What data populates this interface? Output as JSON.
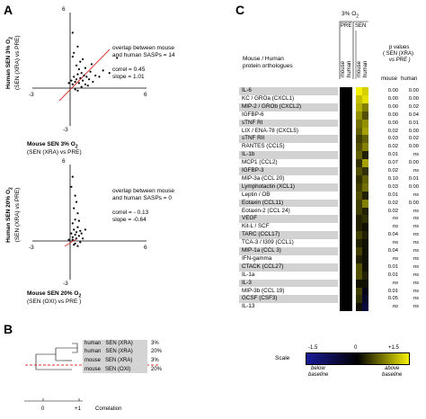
{
  "panel_a": {
    "letter": "A",
    "top": {
      "y_tick_top": "6",
      "x_tick_left": "-3",
      "x_tick_right": "6",
      "y_tick_bottom": "-3",
      "ylabel_line1": "Human SEN  3% O",
      "ylabel_line2": "(SEN (XRA) vs PRE)",
      "xlabel_line1": "Mouse SEN  3% O",
      "xlabel_line2": "(SEN (XRA) vs PRE)",
      "note_line1": "overlap between mouse",
      "note_line2": "and human SASPs = 14",
      "correl": "correl =  0.45",
      "slope": "slope = 1.01",
      "points": [
        [
          0.1,
          0.6
        ],
        [
          0.2,
          0.3
        ],
        [
          0.3,
          0.9
        ],
        [
          0.4,
          0.5
        ],
        [
          0.5,
          0.7
        ],
        [
          0.6,
          1.1
        ],
        [
          0.7,
          0.4
        ],
        [
          0.8,
          0.8
        ],
        [
          0.9,
          1.2
        ],
        [
          1.0,
          0.6
        ],
        [
          1.1,
          1.0
        ],
        [
          1.2,
          0.3
        ],
        [
          1.3,
          0.9
        ],
        [
          1.5,
          0.7
        ],
        [
          1.6,
          1.3
        ],
        [
          1.8,
          0.5
        ],
        [
          2.0,
          1.0
        ],
        [
          2.3,
          0.9
        ],
        [
          0.2,
          2.5
        ],
        [
          0.3,
          2.8
        ],
        [
          0.6,
          3.3
        ],
        [
          0.5,
          1.8
        ],
        [
          0.8,
          2.1
        ],
        [
          1.2,
          1.6
        ],
        [
          1.4,
          0.2
        ],
        [
          0.4,
          -0.1
        ],
        [
          0.9,
          0.1
        ],
        [
          0.6,
          -0.2
        ],
        [
          2.6,
          1.4
        ],
        [
          3.1,
          1.2
        ],
        [
          0.2,
          4.4
        ],
        [
          3.7,
          2.4
        ],
        [
          -0.1,
          0.4
        ],
        [
          0.7,
          1.5
        ],
        [
          1.7,
          1.9
        ],
        [
          1.0,
          2.3
        ]
      ]
    },
    "bottom": {
      "y_tick_top": "6",
      "x_tick_left": "-3",
      "x_tick_right": "6",
      "y_tick_bottom": "-3",
      "ylabel_line1": "Human SEN  20% O",
      "ylabel_line2": "(SEN (XRA) vs PRE)",
      "xlabel_line1": "Mouse SEN  20% O",
      "xlabel_line2": "(SEN (OXI) vs PRE )",
      "note_line1": "overlap between mouse",
      "note_line2": "and human SASPs = 0",
      "correl": "correl = - 0.13",
      "slope": "slope = -0.64",
      "points": [
        [
          0.1,
          0.6
        ],
        [
          0.2,
          0.3
        ],
        [
          0.3,
          0.9
        ],
        [
          0.4,
          0.5
        ],
        [
          0.5,
          0.7
        ],
        [
          0.6,
          1.1
        ],
        [
          0.7,
          0.4
        ],
        [
          0.8,
          0.8
        ],
        [
          0.2,
          1.4
        ],
        [
          0.4,
          1.7
        ],
        [
          0.6,
          2.2
        ],
        [
          0.3,
          2.6
        ],
        [
          0.5,
          3.1
        ],
        [
          0.1,
          4.3
        ],
        [
          0.2,
          5.1
        ],
        [
          0.4,
          -0.2
        ],
        [
          0.6,
          -0.4
        ],
        [
          0.8,
          -0.1
        ],
        [
          1.0,
          0.2
        ],
        [
          0.3,
          -0.3
        ],
        [
          -0.1,
          0.1
        ],
        [
          0.5,
          0.2
        ],
        [
          0.9,
          0.6
        ],
        [
          1.2,
          0.9
        ],
        [
          0.2,
          0.1
        ],
        [
          0.7,
          1.6
        ],
        [
          0.4,
          3.6
        ]
      ]
    }
  },
  "panel_b": {
    "letter": "B",
    "rows": [
      {
        "species": "human",
        "condition": "SEN (XRA)",
        "oxygen": "3%"
      },
      {
        "species": "human",
        "condition": "SEN (XRA)",
        "oxygen": "20%"
      },
      {
        "species": "mouse",
        "condition": "SEN (XRA)",
        "oxygen": "3%"
      },
      {
        "species": "mouse",
        "condition": "SEN (OXI)",
        "oxygen": "20%"
      }
    ],
    "tick_zero": "0",
    "tick_one": "+1",
    "axis_label": "Correlation"
  },
  "panel_c": {
    "letter": "C",
    "oxygen_header": "3% O",
    "pre_label": "PRE",
    "sen_label": "SEN",
    "col_mouse": "mouse",
    "col_human": "human",
    "row_header_line1": "Mouse / Human",
    "row_header_line2": "protein orthologues",
    "pval_header_line1": "p values",
    "pval_header_line2": "( SEN (XRA)",
    "pval_header_line3": "vs PRE )",
    "pval_col_mouse": "mouse",
    "pval_col_human": "human",
    "rows": [
      {
        "name": "IL-6",
        "p_mouse": "0.00",
        "p_human": "0.00",
        "sen_mouse": 1.5,
        "sen_human": 1.3
      },
      {
        "name": "KC / GROa (CXCL1)",
        "p_mouse": "0.00",
        "p_human": "0.00",
        "sen_mouse": 1.2,
        "sen_human": 1.4
      },
      {
        "name": "MIP-2 / GROb (CXCL2)",
        "p_mouse": "0.00",
        "p_human": "0.02",
        "sen_mouse": 1.1,
        "sen_human": 0.8
      },
      {
        "name": "IGFBP-6",
        "p_mouse": "0.00",
        "p_human": "0.04",
        "sen_mouse": 0.9,
        "sen_human": 0.5
      },
      {
        "name": "sTNF RI",
        "p_mouse": "0.00",
        "p_human": "0.01",
        "sen_mouse": 0.7,
        "sen_human": 0.9
      },
      {
        "name": "LIX / ENA-78 (CXCL5)",
        "p_mouse": "0.02",
        "p_human": "0.00",
        "sen_mouse": 0.6,
        "sen_human": 1.0
      },
      {
        "name": "sTNF RII",
        "p_mouse": "0.03",
        "p_human": "0.02",
        "sen_mouse": 0.4,
        "sen_human": 0.6
      },
      {
        "name": "RANTES (CCL5)",
        "p_mouse": "0.02",
        "p_human": "0.00",
        "sen_mouse": 0.5,
        "sen_human": 0.8
      },
      {
        "name": "IL-1b",
        "p_mouse": "0.01",
        "p_human": "ns",
        "sen_mouse": 0.6,
        "sen_human": 0.2
      },
      {
        "name": "MCP1 (CCL2)",
        "p_mouse": "0.07",
        "p_human": "0.00",
        "sen_mouse": 0.3,
        "sen_human": 1.0
      },
      {
        "name": "IGFBP-3",
        "p_mouse": "0.02",
        "p_human": "ns",
        "sen_mouse": 0.5,
        "sen_human": 0.3
      },
      {
        "name": "MIP-3a (CCL 20)",
        "p_mouse": "0.10",
        "p_human": "0.01",
        "sen_mouse": 0.3,
        "sen_human": 0.6
      },
      {
        "name": "Lymphotactin (XCL1)",
        "p_mouse": "0.03",
        "p_human": "0.00",
        "sen_mouse": 0.4,
        "sen_human": 0.7
      },
      {
        "name": "Leptin / OB",
        "p_mouse": "0.01",
        "p_human": "ns",
        "sen_mouse": 0.5,
        "sen_human": 0.2
      },
      {
        "name": "Eotaxin (CCL11)",
        "p_mouse": "0.02",
        "p_human": "0.00",
        "sen_mouse": 0.4,
        "sen_human": 0.8
      },
      {
        "name": "Eotaxin-2 (CCL 24)",
        "p_mouse": "0.02",
        "p_human": "ns",
        "sen_mouse": 0.4,
        "sen_human": 0.2
      },
      {
        "name": "VEGF",
        "p_mouse": "ns",
        "p_human": "ns",
        "sen_mouse": 0.2,
        "sen_human": 0.3
      },
      {
        "name": "Kit-L / SCF",
        "p_mouse": "ns",
        "p_human": "ns",
        "sen_mouse": 0.2,
        "sen_human": 0.1
      },
      {
        "name": "TARC (CCL17)",
        "p_mouse": "0.04",
        "p_human": "ns",
        "sen_mouse": 0.4,
        "sen_human": 0.2
      },
      {
        "name": "TCA-3 / I309 (CCL1)",
        "p_mouse": "ns",
        "p_human": "ns",
        "sen_mouse": 0.2,
        "sen_human": 0.1
      },
      {
        "name": "MIP-1a (CCL 3)",
        "p_mouse": "0.04",
        "p_human": "ns",
        "sen_mouse": 0.4,
        "sen_human": 0.1
      },
      {
        "name": "IFN-gamma",
        "p_mouse": "ns",
        "p_human": "ns",
        "sen_mouse": 0.2,
        "sen_human": 0.1
      },
      {
        "name": "CTACK (CCL27)",
        "p_mouse": "0.01",
        "p_human": "ns",
        "sen_mouse": 0.5,
        "sen_human": 0.1
      },
      {
        "name": "IL-1a",
        "p_mouse": "0.01",
        "p_human": "ns",
        "sen_mouse": 0.5,
        "sen_human": 0.2
      },
      {
        "name": "IL-3",
        "p_mouse": "ns",
        "p_human": "ns",
        "sen_mouse": 0.1,
        "sen_human": 0.1
      },
      {
        "name": "MIP-3b (CCL 19)",
        "p_mouse": "0.01",
        "p_human": "ns",
        "sen_mouse": 0.4,
        "sen_human": -0.2
      },
      {
        "name": "GCSF (CSF3)",
        "p_mouse": "0.05",
        "p_human": "ns",
        "sen_mouse": 0.3,
        "sen_human": -0.4
      },
      {
        "name": "IL-13",
        "p_mouse": "ns",
        "p_human": "ns",
        "sen_mouse": 0.1,
        "sen_human": -0.6
      }
    ],
    "scale": {
      "label": "Scale",
      "min": "-1.5",
      "mid": "0",
      "max": "+1.5",
      "below": "below",
      "above": "above",
      "baseline": "baseline",
      "color_low": "#1a1a9a",
      "color_mid": "#000000",
      "color_high": "#f5f000"
    }
  }
}
